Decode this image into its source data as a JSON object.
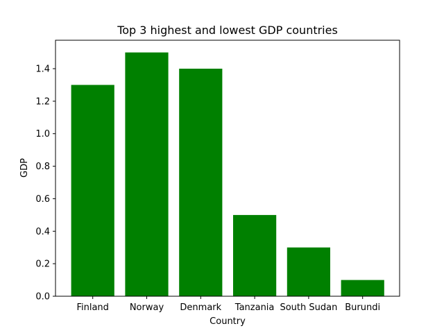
{
  "chart_data": {
    "type": "bar",
    "title": "Top 3 highest and lowest GDP countries",
    "xlabel": "Country",
    "ylabel": "GDP",
    "categories": [
      "Finland",
      "Norway",
      "Denmark",
      "Tanzania",
      "South Sudan",
      "Burundi"
    ],
    "values": [
      1.3,
      1.5,
      1.4,
      0.5,
      0.3,
      0.1
    ],
    "ylim": [
      0,
      1.575
    ],
    "yticks": [
      0.0,
      0.2,
      0.4,
      0.6,
      0.8,
      1.0,
      1.2,
      1.4
    ],
    "ytick_labels": [
      "0.0",
      "0.2",
      "0.4",
      "0.6",
      "0.8",
      "1.0",
      "1.2",
      "1.4"
    ],
    "bar_color": "#008000",
    "grid": false,
    "legend": "none"
  }
}
